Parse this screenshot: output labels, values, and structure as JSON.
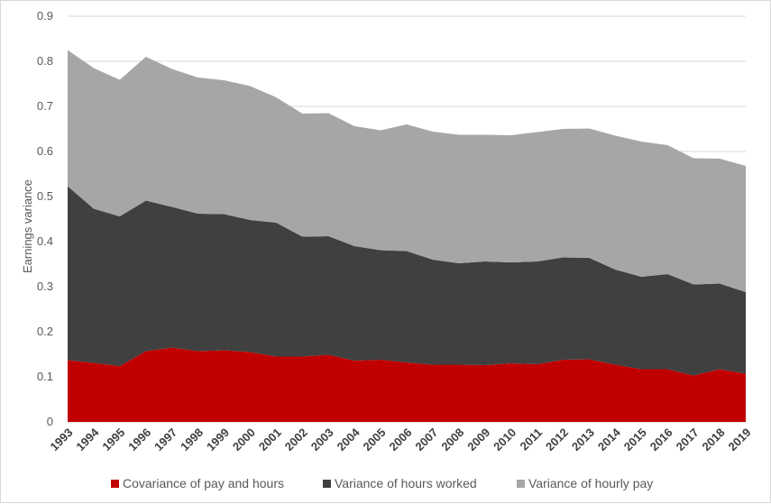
{
  "chart_data": {
    "type": "area",
    "stacked": true,
    "title": "",
    "xlabel": "",
    "ylabel": "Earnings variance",
    "ylim": [
      0,
      0.9
    ],
    "yticks": [
      0,
      0.1,
      0.2,
      0.3,
      0.4,
      0.5,
      0.6,
      0.7,
      0.8,
      0.9
    ],
    "ytick_labels": [
      "0",
      "0.1",
      "0.2",
      "0.3",
      "0.4",
      "0.5",
      "0.6",
      "0.7",
      "0.8",
      "0.9"
    ],
    "grid": "horizontal",
    "legend_position": "bottom",
    "categories": [
      "1993",
      "1994",
      "1995",
      "1996",
      "1997",
      "1998",
      "1999",
      "2000",
      "2001",
      "2002",
      "2003",
      "2004",
      "2005",
      "2006",
      "2007",
      "2008",
      "2009",
      "2010",
      "2011",
      "2012",
      "2013",
      "2014",
      "2015",
      "2016",
      "2017",
      "2018",
      "2019"
    ],
    "series": [
      {
        "name": "Covariance of pay and hours",
        "color": "#c00000",
        "values": [
          0.137,
          0.131,
          0.124,
          0.157,
          0.165,
          0.157,
          0.159,
          0.155,
          0.145,
          0.145,
          0.149,
          0.136,
          0.138,
          0.132,
          0.127,
          0.127,
          0.126,
          0.13,
          0.128,
          0.138,
          0.139,
          0.127,
          0.117,
          0.117,
          0.103,
          0.117,
          0.107
        ]
      },
      {
        "name": "Variance of hours worked",
        "color": "#404040",
        "values": [
          0.386,
          0.342,
          0.332,
          0.334,
          0.312,
          0.305,
          0.302,
          0.293,
          0.297,
          0.266,
          0.263,
          0.254,
          0.243,
          0.247,
          0.233,
          0.225,
          0.23,
          0.224,
          0.228,
          0.227,
          0.225,
          0.211,
          0.205,
          0.211,
          0.202,
          0.19,
          0.181
        ]
      },
      {
        "name": "Variance of hourly pay",
        "color": "#a6a6a6",
        "values": [
          0.302,
          0.312,
          0.303,
          0.319,
          0.306,
          0.302,
          0.297,
          0.297,
          0.278,
          0.273,
          0.273,
          0.266,
          0.266,
          0.281,
          0.284,
          0.285,
          0.281,
          0.282,
          0.287,
          0.285,
          0.287,
          0.297,
          0.3,
          0.286,
          0.28,
          0.277,
          0.28
        ]
      }
    ]
  }
}
